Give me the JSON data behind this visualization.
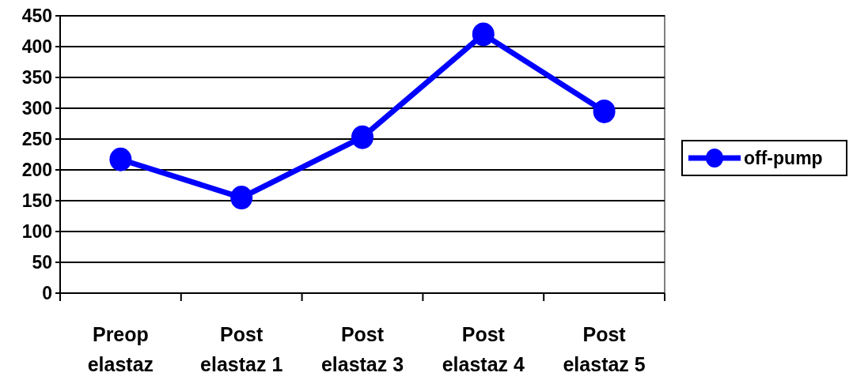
{
  "chart_data": {
    "type": "line",
    "categories": [
      "Preop elastaz",
      "Post elastaz 1",
      "Post elastaz 3",
      "Post elastaz 4",
      "Post elastaz 5"
    ],
    "series": [
      {
        "name": "off-pump",
        "color": "#0000ff",
        "values": [
          217,
          155,
          253,
          420,
          295
        ]
      }
    ],
    "ylim": [
      0,
      450
    ],
    "yticks": [
      0,
      50,
      100,
      150,
      200,
      250,
      300,
      350,
      400,
      450
    ],
    "grid": "y",
    "legend": "right",
    "marker": "circle",
    "line_style": "solid"
  }
}
